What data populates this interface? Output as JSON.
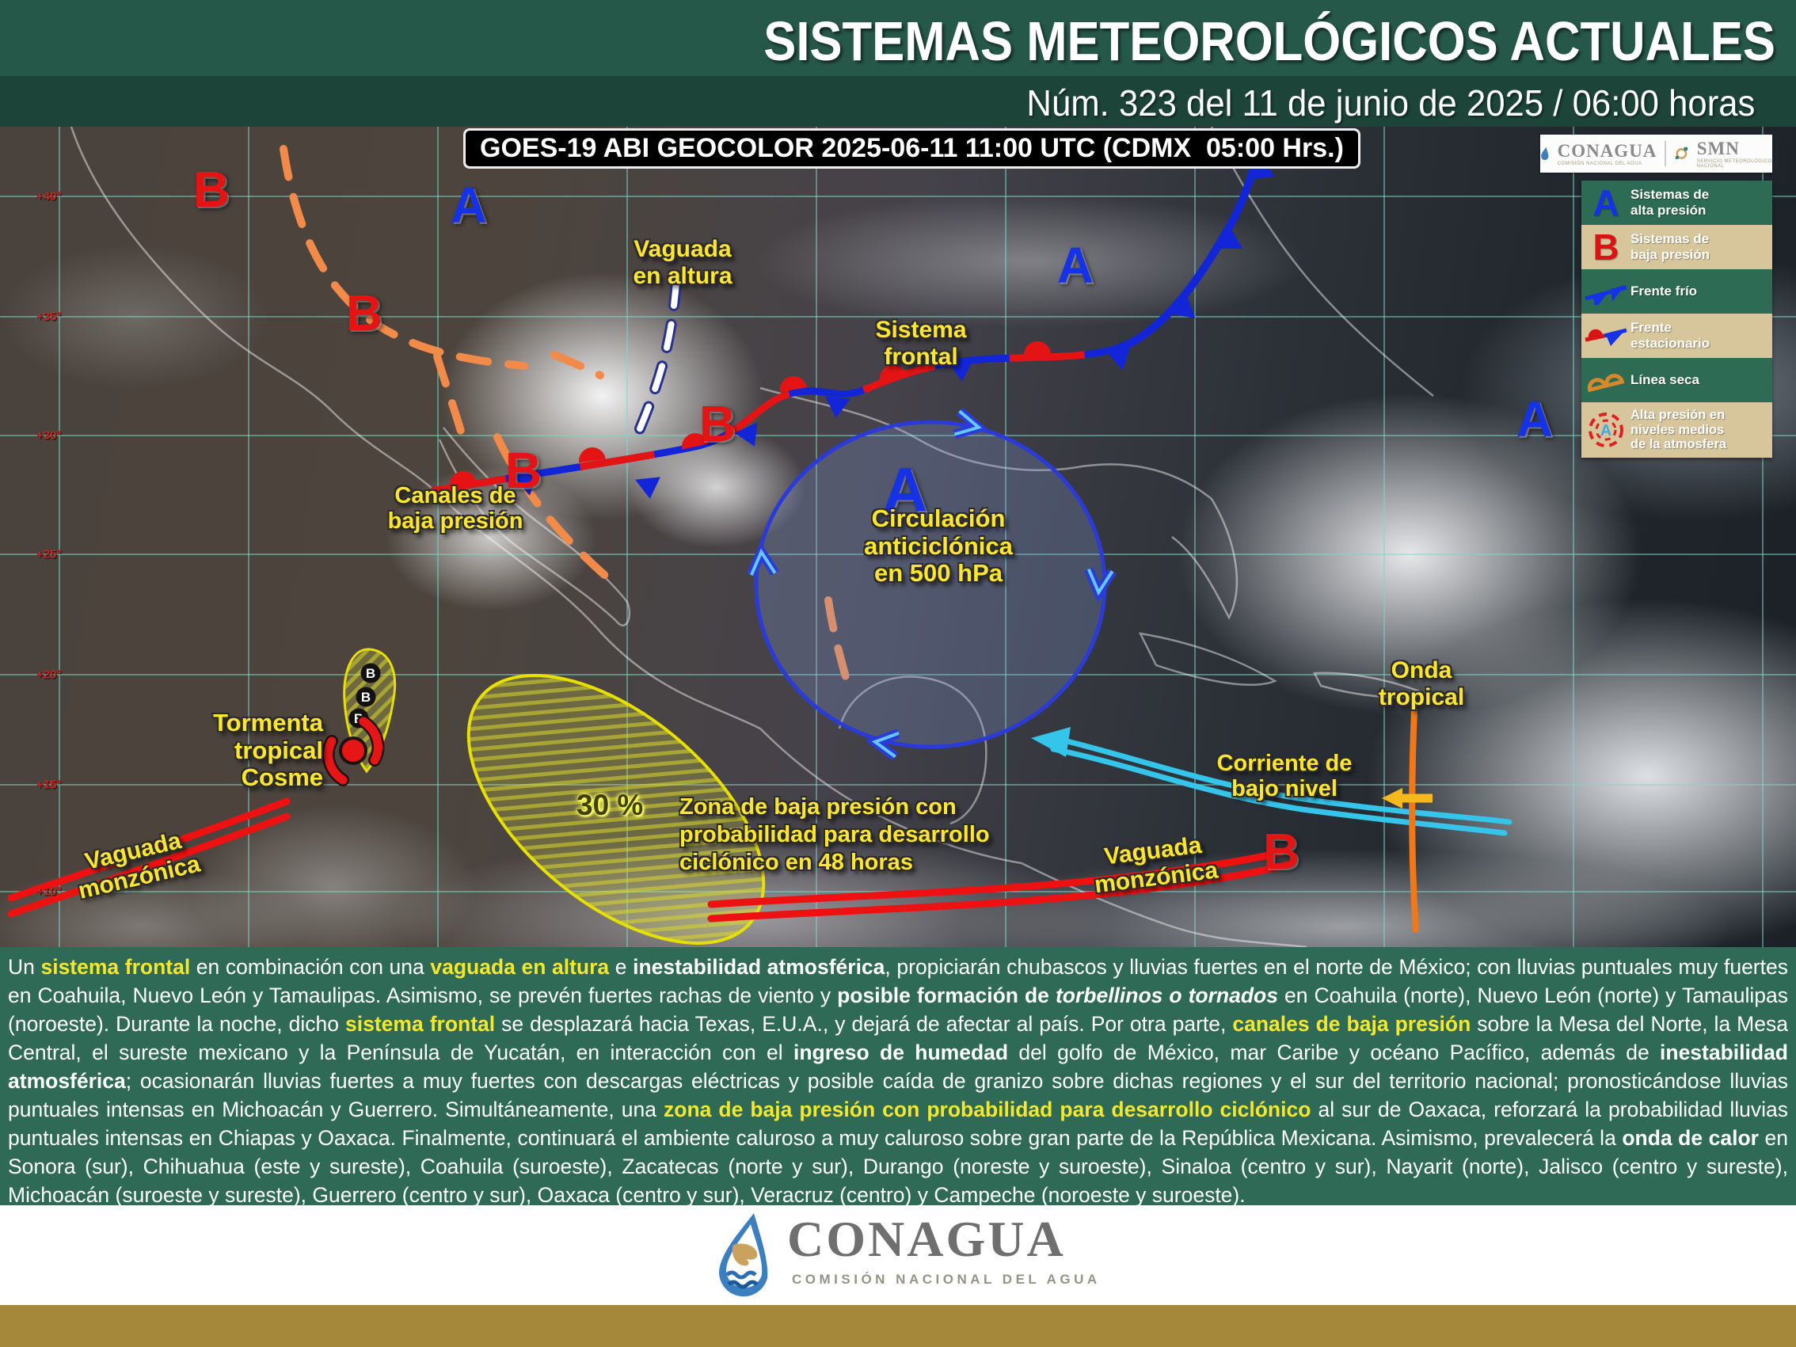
{
  "header": {
    "title": "SISTEMAS METEOROLÓGICOS ACTUALES",
    "subtitle": "Núm. 323 del 11 de junio de 2025 / 06:00 horas"
  },
  "satellite_caption": "GOES-19 ABI GEOCOLOR 2025-06-11 11:00 UTC (CDMX  05:00 Hrs.)",
  "map": {
    "lat_labels": [
      "+40°",
      "+35°",
      "+30°",
      "+25°",
      "+20°",
      "+15°",
      "+10°"
    ],
    "pressure_marks": [
      {
        "letter": "A",
        "type": "alta presión"
      },
      {
        "letter": "A",
        "type": "alta presión"
      },
      {
        "letter": "A",
        "type": "alta presión (500 hPa)"
      },
      {
        "letter": "A",
        "type": "alta presión"
      },
      {
        "letter": "B",
        "type": "baja presión"
      },
      {
        "letter": "B",
        "type": "baja presión"
      },
      {
        "letter": "B",
        "type": "baja presión"
      },
      {
        "letter": "B",
        "type": "baja presión"
      },
      {
        "letter": "B",
        "type": "baja presión"
      }
    ],
    "labels": {
      "vaguada_altura": "Vaguada\nen altura",
      "sistema_frontal": "Sistema\nfrontal",
      "canales": "Canales de\nbaja presión",
      "circulacion": "Circulación\nanticiclónica\nen 500 hPa",
      "cosme": "Tormenta\ntropical\nCosme",
      "zona_baja": "Zona de baja presión con\nprobabilidad para desarrollo\nciclónico en 48 horas",
      "prob": "30 %",
      "onda_tropical": "Onda\ntropical",
      "corriente": "Corriente de\nbajo nivel",
      "vaguada_monzonica_izq": "Vaguada\nmonzónica",
      "vaguada_monzonica_der": "Vaguada\nmonzónica"
    },
    "track_letters": [
      "B",
      "B",
      "B"
    ]
  },
  "legend": {
    "logos": {
      "conagua": "CONAGUA",
      "conagua_sub": "COMISIÓN NACIONAL DEL AGUA",
      "smn": "SMN",
      "smn_sub": "SERVICIO METEOROLÓGICO NACIONAL"
    },
    "items": [
      {
        "symbol": "A",
        "label": "Sistemas de\nalta presión"
      },
      {
        "symbol": "B",
        "label": "Sistemas de\nbaja presión"
      },
      {
        "symbol": "frente-frio",
        "label": "Frente frío"
      },
      {
        "symbol": "frente-estacionario",
        "label": "Frente\nestacionario"
      },
      {
        "symbol": "linea-seca",
        "label": "Línea seca"
      },
      {
        "symbol": "alta-niveles-medios",
        "label": "Alta presión en\nniveles medios\nde la atmosfera"
      }
    ]
  },
  "bulletin": {
    "segments": [
      {
        "t": "Un ",
        "s": "n"
      },
      {
        "t": "sistema frontal",
        "s": "y"
      },
      {
        "t": " en combinación con una ",
        "s": "n"
      },
      {
        "t": "vaguada en altura",
        "s": "y"
      },
      {
        "t": " e ",
        "s": "n"
      },
      {
        "t": "inestabilidad atmosférica",
        "s": "b"
      },
      {
        "t": ", propiciarán chubascos y lluvias fuertes en el norte de México; con lluvias puntuales muy fuertes en Coahuila, Nuevo León y Tamaulipas. Asimismo, se prevén fuertes rachas de viento y ",
        "s": "n"
      },
      {
        "t": "posible formación de ",
        "s": "b"
      },
      {
        "t": "torbellinos o tornados",
        "s": "bi"
      },
      {
        "t": " en Coahuila (norte), Nuevo León (norte) y Tamaulipas (noroeste). Durante la noche, dicho ",
        "s": "n"
      },
      {
        "t": "sistema frontal",
        "s": "y"
      },
      {
        "t": " se desplazará hacia Texas, E.U.A., y dejará de afectar al país. Por otra parte, ",
        "s": "n"
      },
      {
        "t": "canales de baja presión",
        "s": "y"
      },
      {
        "t": " sobre la Mesa del Norte, la Mesa Central, el sureste mexicano y la Península de Yucatán, en interacción con el ",
        "s": "n"
      },
      {
        "t": "ingreso de humedad",
        "s": "b"
      },
      {
        "t": " del golfo de México, mar Caribe y océano Pacífico, además de ",
        "s": "n"
      },
      {
        "t": "inestabilidad atmosférica",
        "s": "b"
      },
      {
        "t": "; ocasionarán lluvias fuertes a muy fuertes con descargas eléctricas y posible caída de granizo sobre dichas regiones y el sur del territorio nacional; pronosticándose lluvias puntuales intensas en Michoacán y Guerrero. Simultáneamente, una ",
        "s": "n"
      },
      {
        "t": "zona de baja presión con probabilidad para desarrollo ciclónico",
        "s": "y"
      },
      {
        "t": " al sur de Oaxaca, reforzará la probabilidad lluvias puntuales intensas en Chiapas y Oaxaca. Finalmente, continuará el ambiente caluroso a muy caluroso sobre gran parte de la República Mexicana. Asimismo, prevalecerá la ",
        "s": "n"
      },
      {
        "t": "onda de calor",
        "s": "b"
      },
      {
        "t": " en Sonora (sur), Chihuahua (este y sureste), Coahuila (suroeste), Zacatecas (norte y sur), Durango (noreste y suroeste), Sinaloa (centro y sur), Nayarit (norte), Jalisco (centro y sureste), Michoacán (suroeste y sureste), Guerrero (centro y sur), Oaxaca (centro y sur), Veracruz (centro) y Campeche (noroeste y suroeste).",
        "s": "n"
      }
    ]
  },
  "footer": {
    "brand": "CONAGUA",
    "brand_sub": "COMISIÓN NACIONAL DEL AGUA"
  }
}
